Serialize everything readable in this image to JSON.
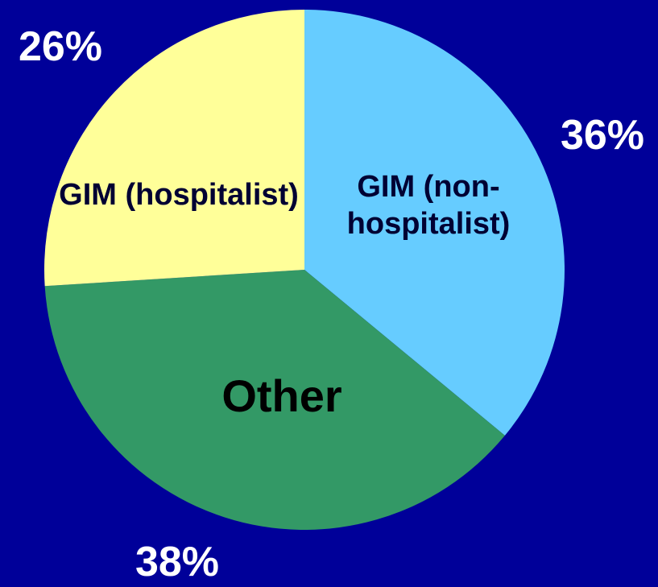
{
  "chart_data": {
    "type": "pie",
    "categories": [
      "GIM (non-hospitalist)",
      "Other",
      "GIM (hospitalist)"
    ],
    "values": [
      36,
      38,
      26
    ],
    "value_labels": [
      "36%",
      "38%",
      "26%"
    ],
    "colors": [
      "#66ccff",
      "#339966",
      "#ffff99"
    ]
  }
}
